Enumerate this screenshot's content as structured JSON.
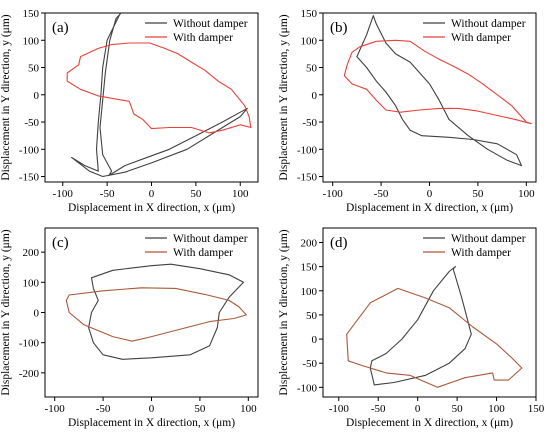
{
  "figure": {
    "background": "#ffffff"
  },
  "chart_data": [
    {
      "id": "a",
      "type": "line",
      "panel_label": "(a)",
      "xlabel": "Displacement in X direction, x (μm)",
      "ylabel": "Displacement in Y direction, y (μm)",
      "xlim": [
        -120,
        120
      ],
      "ylim": [
        -160,
        150
      ],
      "xticks": [
        -100,
        -50,
        0,
        50,
        100
      ],
      "yticks": [
        -150,
        -100,
        -50,
        0,
        50,
        100,
        150
      ],
      "legend_position": "top-right",
      "series": [
        {
          "name": "Without damper",
          "color": "#404040",
          "closed": false,
          "points": [
            [
              -35,
              150
            ],
            [
              -50,
              100
            ],
            [
              -55,
              50
            ],
            [
              -57,
              0
            ],
            [
              -60,
              -50
            ],
            [
              -62,
              -100
            ],
            [
              -60,
              -140
            ],
            [
              -75,
              -130
            ],
            [
              -90,
              -115
            ],
            [
              -70,
              -140
            ],
            [
              -55,
              -150
            ],
            [
              -30,
              -142
            ],
            [
              0,
              -125
            ],
            [
              40,
              -100
            ],
            [
              80,
              -60
            ],
            [
              100,
              -40
            ],
            [
              108,
              -25
            ],
            [
              100,
              -32
            ],
            [
              80,
              -50
            ],
            [
              50,
              -75
            ],
            [
              20,
              -100
            ],
            [
              0,
              -112
            ],
            [
              -30,
              -130
            ],
            [
              -48,
              -148
            ],
            [
              -45,
              -140
            ],
            [
              -55,
              -110
            ],
            [
              -58,
              -60
            ],
            [
              -55,
              -10
            ],
            [
              -52,
              40
            ],
            [
              -47,
              100
            ],
            [
              -40,
              140
            ],
            [
              -33,
              152
            ]
          ]
        },
        {
          "name": "With damper",
          "color": "#e8413a",
          "closed": true,
          "points": [
            [
              -80,
              70
            ],
            [
              -60,
              85
            ],
            [
              -45,
              92
            ],
            [
              -25,
              95
            ],
            [
              -2,
              95
            ],
            [
              15,
              85
            ],
            [
              30,
              75
            ],
            [
              45,
              60
            ],
            [
              60,
              45
            ],
            [
              75,
              25
            ],
            [
              90,
              10
            ],
            [
              105,
              -20
            ],
            [
              110,
              -40
            ],
            [
              112,
              -60
            ],
            [
              100,
              -55
            ],
            [
              80,
              -65
            ],
            [
              65,
              -70
            ],
            [
              45,
              -60
            ],
            [
              20,
              -60
            ],
            [
              0,
              -62
            ],
            [
              -10,
              -45
            ],
            [
              -20,
              -35
            ],
            [
              -25,
              -12
            ],
            [
              -40,
              -8
            ],
            [
              -60,
              -2
            ],
            [
              -80,
              10
            ],
            [
              -95,
              25
            ],
            [
              -95,
              40
            ],
            [
              -82,
              55
            ]
          ]
        }
      ]
    },
    {
      "id": "b",
      "type": "line",
      "panel_label": "(b)",
      "xlabel": "Displacement in X direction, x (μm)",
      "ylabel": "Displacement in Y direction, y (μm)",
      "xlim": [
        -110,
        110
      ],
      "ylim": [
        -160,
        150
      ],
      "xticks": [
        -100,
        -50,
        0,
        50,
        100
      ],
      "yticks": [
        -150,
        -100,
        -50,
        0,
        50,
        100,
        150
      ],
      "legend_position": "top-right",
      "series": [
        {
          "name": "Without damper",
          "color": "#404040",
          "closed": true,
          "points": [
            [
              -58,
              145
            ],
            [
              -65,
              110
            ],
            [
              -75,
              70
            ],
            [
              -65,
              50
            ],
            [
              -55,
              25
            ],
            [
              -45,
              5
            ],
            [
              -35,
              -20
            ],
            [
              -28,
              -45
            ],
            [
              -20,
              -65
            ],
            [
              -8,
              -75
            ],
            [
              20,
              -78
            ],
            [
              45,
              -82
            ],
            [
              70,
              -90
            ],
            [
              90,
              -110
            ],
            [
              95,
              -130
            ],
            [
              80,
              -120
            ],
            [
              60,
              -100
            ],
            [
              40,
              -75
            ],
            [
              20,
              -45
            ],
            [
              10,
              -10
            ],
            [
              0,
              20
            ],
            [
              -10,
              40
            ],
            [
              -20,
              60
            ],
            [
              -35,
              75
            ],
            [
              -45,
              95
            ],
            [
              -55,
              130
            ]
          ]
        },
        {
          "name": "With damper",
          "color": "#e8413a",
          "closed": true,
          "points": [
            [
              -72,
              88
            ],
            [
              -55,
              98
            ],
            [
              -35,
              100
            ],
            [
              -20,
              98
            ],
            [
              -5,
              80
            ],
            [
              10,
              65
            ],
            [
              25,
              52
            ],
            [
              40,
              38
            ],
            [
              55,
              20
            ],
            [
              70,
              0
            ],
            [
              85,
              -20
            ],
            [
              100,
              -50
            ],
            [
              105,
              -53
            ],
            [
              88,
              -45
            ],
            [
              70,
              -38
            ],
            [
              50,
              -30
            ],
            [
              30,
              -25
            ],
            [
              10,
              -25
            ],
            [
              -10,
              -28
            ],
            [
              -30,
              -32
            ],
            [
              -45,
              -28
            ],
            [
              -55,
              -10
            ],
            [
              -65,
              10
            ],
            [
              -80,
              20
            ],
            [
              -88,
              35
            ],
            [
              -85,
              55
            ],
            [
              -80,
              78
            ]
          ]
        }
      ]
    },
    {
      "id": "c",
      "type": "line",
      "panel_label": "(c)",
      "xlabel": "Displacement in X direction, x (μm)",
      "ylabel": "Displacement in Y direction, y (μm)",
      "xlim": [
        -110,
        110
      ],
      "ylim": [
        -280,
        280
      ],
      "xticks": [
        -100,
        -50,
        0,
        50,
        100
      ],
      "yticks": [
        -200,
        -100,
        0,
        100,
        200
      ],
      "legend_position": "top-right",
      "series": [
        {
          "name": "Without damper",
          "color": "#404040",
          "closed": true,
          "points": [
            [
              -62,
              115
            ],
            [
              -40,
              140
            ],
            [
              0,
              155
            ],
            [
              20,
              160
            ],
            [
              50,
              145
            ],
            [
              80,
              125
            ],
            [
              95,
              100
            ],
            [
              80,
              50
            ],
            [
              70,
              0
            ],
            [
              68,
              -50
            ],
            [
              60,
              -110
            ],
            [
              40,
              -140
            ],
            [
              0,
              -150
            ],
            [
              -30,
              -155
            ],
            [
              -50,
              -140
            ],
            [
              -60,
              -100
            ],
            [
              -65,
              -50
            ],
            [
              -62,
              0
            ],
            [
              -55,
              40
            ],
            [
              -60,
              80
            ]
          ]
        },
        {
          "name": "With damper",
          "color": "#a85a3a",
          "closed": true,
          "points": [
            [
              -85,
              58
            ],
            [
              -50,
              72
            ],
            [
              -10,
              82
            ],
            [
              25,
              80
            ],
            [
              55,
              60
            ],
            [
              80,
              40
            ],
            [
              90,
              20
            ],
            [
              98,
              -8
            ],
            [
              85,
              -20
            ],
            [
              60,
              -30
            ],
            [
              30,
              -55
            ],
            [
              0,
              -80
            ],
            [
              -20,
              -95
            ],
            [
              -40,
              -80
            ],
            [
              -70,
              -40
            ],
            [
              -85,
              0
            ],
            [
              -88,
              40
            ]
          ]
        }
      ]
    },
    {
      "id": "d",
      "type": "line",
      "panel_label": "(d)",
      "xlabel": "Displecement in X direction, x (μm)",
      "ylabel": "Displecement in Y direction, y (μm)",
      "xlim": [
        -120,
        150
      ],
      "ylim": [
        -120,
        230
      ],
      "xticks": [
        -100,
        -50,
        0,
        50,
        100,
        150
      ],
      "yticks": [
        -100,
        -50,
        0,
        50,
        100,
        150,
        200
      ],
      "legend_position": "top-right",
      "series": [
        {
          "name": "Without damper",
          "color": "#404040",
          "closed": true,
          "points": [
            [
              48,
              150
            ],
            [
              40,
              140
            ],
            [
              20,
              100
            ],
            [
              0,
              40
            ],
            [
              -20,
              0
            ],
            [
              -40,
              -30
            ],
            [
              -58,
              -45
            ],
            [
              -60,
              -60
            ],
            [
              -55,
              -95
            ],
            [
              -30,
              -90
            ],
            [
              10,
              -75
            ],
            [
              40,
              -50
            ],
            [
              60,
              -20
            ],
            [
              68,
              10
            ],
            [
              60,
              60
            ],
            [
              55,
              90
            ],
            [
              45,
              145
            ]
          ]
        },
        {
          "name": "With damper",
          "color": "#a85a3a",
          "closed": true,
          "points": [
            [
              -90,
              10
            ],
            [
              -60,
              75
            ],
            [
              -25,
              105
            ],
            [
              10,
              85
            ],
            [
              40,
              65
            ],
            [
              70,
              25
            ],
            [
              100,
              -10
            ],
            [
              120,
              -40
            ],
            [
              132,
              -60
            ],
            [
              115,
              -85
            ],
            [
              97,
              -85
            ],
            [
              95,
              -70
            ],
            [
              60,
              -80
            ],
            [
              25,
              -100
            ],
            [
              -10,
              -75
            ],
            [
              -40,
              -70
            ],
            [
              -70,
              -55
            ],
            [
              -88,
              -45
            ]
          ]
        }
      ]
    }
  ]
}
